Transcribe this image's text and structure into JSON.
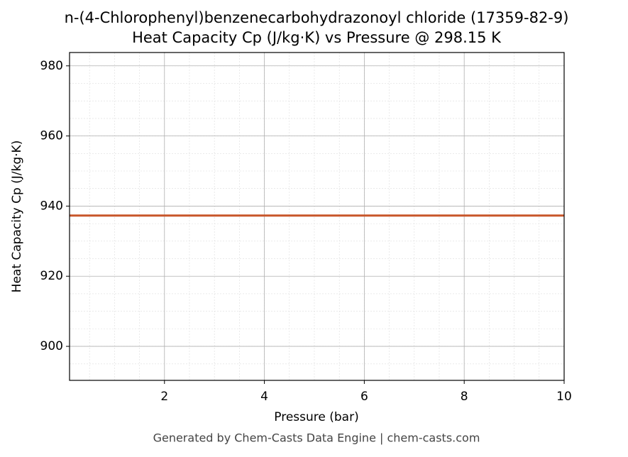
{
  "chart_data": {
    "type": "line",
    "title": "n-(4-Chlorophenyl)benzenecarbohydrazonoyl chloride (17359-82-9)",
    "subtitle": "Heat Capacity Cp (J/kg·K) vs Pressure @ 298.15 K",
    "x_label": "Pressure (bar)",
    "y_label": "Heat Capacity Cp (J/kg·K)",
    "footer": "Generated by Chem-Casts Data Engine | chem-casts.com",
    "x": [
      0.1,
      10
    ],
    "series": [
      {
        "name": "Cp",
        "color": "#c8562a",
        "values": [
          937.3,
          937.3
        ]
      }
    ],
    "xlim": [
      0.1,
      10
    ],
    "xticks": [
      2,
      4,
      6,
      8,
      10
    ],
    "ylim": [
      890.3,
      983.8
    ],
    "yticks": [
      900,
      920,
      940,
      960,
      980
    ],
    "grid": true,
    "minor_grid": true
  }
}
